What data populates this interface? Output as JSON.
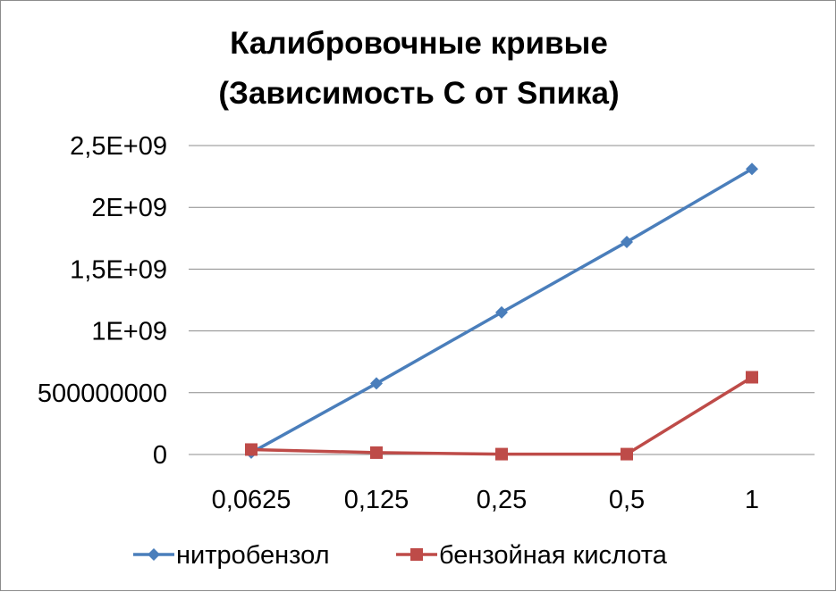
{
  "chart_data": {
    "type": "line",
    "title": "Калибровочные кривые (Зависимость C от Sпика)",
    "title_lines": [
      "Калибровочные кривые",
      "(Зависимость C от Sпика)"
    ],
    "xlabel": "",
    "ylabel": "",
    "categories": [
      "0,0625",
      "0,125",
      "0,25",
      "0,5",
      "1"
    ],
    "y_ticks": [
      0,
      500000000,
      1000000000,
      1500000000,
      2000000000,
      2500000000
    ],
    "y_tick_labels": [
      "0",
      "500000000",
      "1E+09",
      "1,5E+09",
      "2E+09",
      "2,5E+09"
    ],
    "ylim": [
      0,
      2500000000
    ],
    "grid": true,
    "legend_position": "bottom",
    "series": [
      {
        "name": "нитробензол",
        "color": "#4a7ebb",
        "marker": "diamond",
        "values": [
          15000000,
          575000000,
          1150000000,
          1720000000,
          2310000000
        ]
      },
      {
        "name": "бензойная кислота",
        "color": "#be4b48",
        "marker": "square",
        "values": [
          40000000,
          15000000,
          3000000,
          3000000,
          625000000
        ]
      }
    ]
  }
}
